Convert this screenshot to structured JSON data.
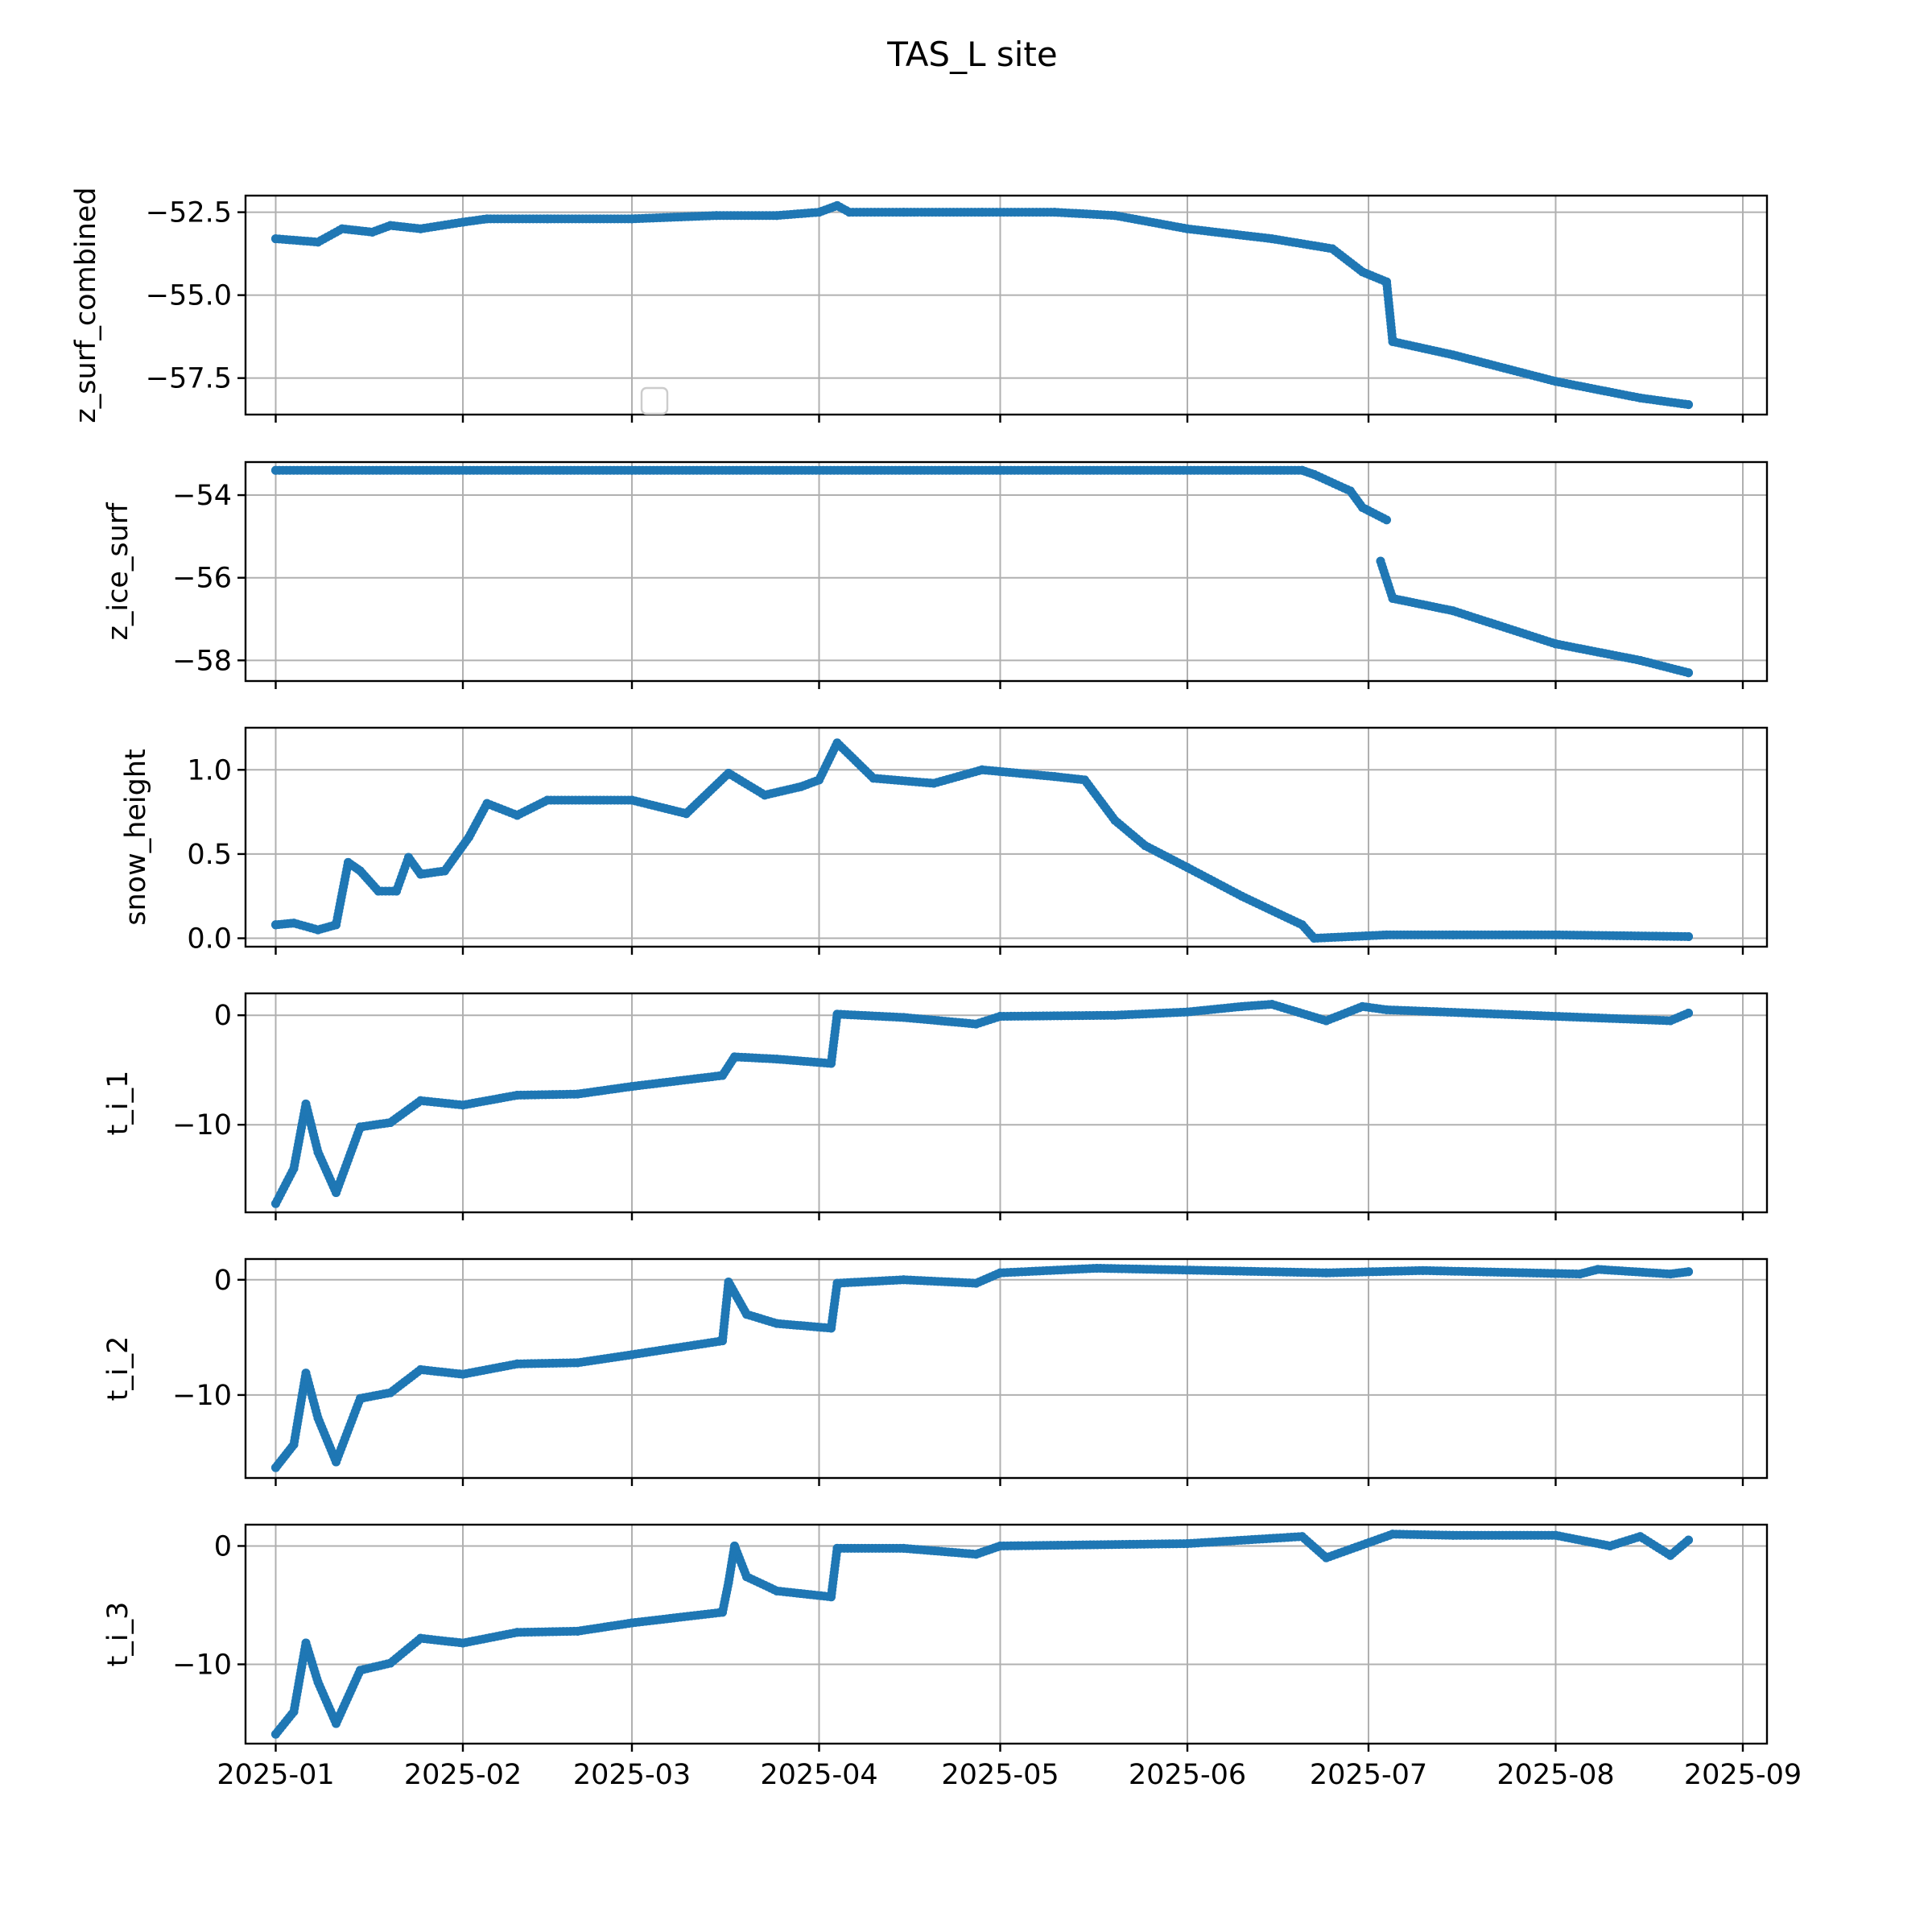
{
  "figure": {
    "title": "TAS_L site"
  },
  "colors": {
    "series": "#1f77b4",
    "grid": "#b0b0b0",
    "frame": "#000000"
  },
  "x_tick_labels": [
    "2025-01",
    "2025-02",
    "2025-03",
    "2025-04",
    "2025-05",
    "2025-06",
    "2025-07",
    "2025-08",
    "2025-09"
  ],
  "chart_data": [
    {
      "type": "scatter",
      "ylabel": "z_surf_combined",
      "ylim": [
        -58.6,
        -52.0
      ],
      "yticks": [
        -52.5,
        -55.0,
        -57.5
      ],
      "ytick_labels": [
        "−52.5",
        "−55.0",
        "−57.5"
      ],
      "xlim": [
        "2024-12-27",
        "2025-09-05"
      ],
      "show_xtick_labels": false,
      "legend": "empty box at lower center",
      "grid": true,
      "x": [
        "2025-01-01",
        "2025-01-08",
        "2025-01-12",
        "2025-01-17",
        "2025-01-20",
        "2025-01-25",
        "2025-02-01",
        "2025-02-05",
        "2025-02-15",
        "2025-03-01",
        "2025-03-15",
        "2025-03-25",
        "2025-04-01",
        "2025-04-04",
        "2025-04-06",
        "2025-04-15",
        "2025-04-28",
        "2025-05-10",
        "2025-05-20",
        "2025-06-01",
        "2025-06-15",
        "2025-06-25",
        "2025-06-30",
        "2025-07-04",
        "2025-07-05",
        "2025-07-15",
        "2025-08-01",
        "2025-08-15",
        "2025-08-23"
      ],
      "y": [
        -53.3,
        -53.4,
        -53.0,
        -53.1,
        -52.9,
        -53.0,
        -52.8,
        -52.7,
        -52.7,
        -52.7,
        -52.6,
        -52.6,
        -52.5,
        -52.3,
        -52.5,
        -52.5,
        -52.5,
        -52.5,
        -52.6,
        -53.0,
        -53.3,
        -53.6,
        -54.3,
        -54.6,
        -56.4,
        -56.8,
        -57.6,
        -58.1,
        -58.3
      ]
    },
    {
      "type": "scatter",
      "ylabel": "z_ice_surf",
      "ylim": [
        -58.5,
        -53.2
      ],
      "yticks": [
        -54,
        -56,
        -58
      ],
      "ytick_labels": [
        "−54",
        "−56",
        "−58"
      ],
      "xlim": [
        "2024-12-27",
        "2025-09-05"
      ],
      "show_xtick_labels": false,
      "grid": true,
      "x": [
        "2025-01-01",
        "2025-03-01",
        "2025-05-01",
        "2025-06-20",
        "2025-06-22",
        "2025-06-28",
        "2025-06-30",
        "2025-07-04",
        "2025-07-03",
        "2025-07-05",
        "2025-07-15",
        "2025-08-01",
        "2025-08-15",
        "2025-08-23"
      ],
      "y": [
        -53.4,
        -53.4,
        -53.4,
        -53.4,
        -53.5,
        -53.9,
        -54.3,
        -54.6,
        -55.6,
        -56.5,
        -56.8,
        -57.6,
        -58.0,
        -58.3
      ]
    },
    {
      "type": "scatter",
      "ylabel": "snow_height",
      "ylim": [
        -0.05,
        1.25
      ],
      "yticks": [
        0.0,
        0.5,
        1.0
      ],
      "ytick_labels": [
        "0.0",
        "0.5",
        "1.0"
      ],
      "xlim": [
        "2024-12-27",
        "2025-09-05"
      ],
      "show_xtick_labels": false,
      "grid": true,
      "x": [
        "2025-01-01",
        "2025-01-04",
        "2025-01-08",
        "2025-01-11",
        "2025-01-13",
        "2025-01-15",
        "2025-01-18",
        "2025-01-21",
        "2025-01-23",
        "2025-01-25",
        "2025-01-29",
        "2025-02-02",
        "2025-02-05",
        "2025-02-10",
        "2025-02-15",
        "2025-03-01",
        "2025-03-10",
        "2025-03-17",
        "2025-03-23",
        "2025-03-29",
        "2025-04-01",
        "2025-04-04",
        "2025-04-10",
        "2025-04-20",
        "2025-04-28",
        "2025-05-10",
        "2025-05-15",
        "2025-05-20",
        "2025-05-25",
        "2025-06-01",
        "2025-06-10",
        "2025-06-20",
        "2025-06-22",
        "2025-07-04",
        "2025-07-15",
        "2025-08-01",
        "2025-08-23"
      ],
      "y": [
        0.08,
        0.09,
        0.05,
        0.08,
        0.45,
        0.4,
        0.28,
        0.28,
        0.48,
        0.38,
        0.4,
        0.6,
        0.8,
        0.73,
        0.82,
        0.82,
        0.74,
        0.98,
        0.85,
        0.9,
        0.94,
        1.16,
        0.95,
        0.92,
        1.0,
        0.96,
        0.94,
        0.7,
        0.55,
        0.42,
        0.25,
        0.08,
        0.0,
        0.02,
        0.02,
        0.02,
        0.01
      ]
    },
    {
      "type": "scatter",
      "ylabel": "t_i_1",
      "ylim": [
        -18.0,
        2.0
      ],
      "yticks": [
        0,
        -10
      ],
      "ytick_labels": [
        "0",
        "−10"
      ],
      "xlim": [
        "2024-12-27",
        "2025-09-05"
      ],
      "show_xtick_labels": false,
      "grid": true,
      "x": [
        "2025-01-01",
        "2025-01-04",
        "2025-01-06",
        "2025-01-08",
        "2025-01-11",
        "2025-01-15",
        "2025-01-20",
        "2025-01-25",
        "2025-02-01",
        "2025-02-10",
        "2025-02-20",
        "2025-03-01",
        "2025-03-16",
        "2025-03-18",
        "2025-03-25",
        "2025-04-03",
        "2025-04-04",
        "2025-04-15",
        "2025-04-27",
        "2025-05-01",
        "2025-05-20",
        "2025-06-01",
        "2025-06-10",
        "2025-06-15",
        "2025-06-24",
        "2025-06-30",
        "2025-07-04",
        "2025-08-20",
        "2025-08-23"
      ],
      "y": [
        -17.2,
        -14.0,
        -8.1,
        -12.5,
        -16.2,
        -10.2,
        -9.8,
        -7.8,
        -8.2,
        -7.3,
        -7.2,
        -6.5,
        -5.5,
        -3.8,
        -4.0,
        -4.4,
        0.1,
        -0.2,
        -0.8,
        -0.1,
        0.0,
        0.3,
        0.8,
        1.0,
        -0.5,
        0.8,
        0.5,
        -0.5,
        0.2
      ]
    },
    {
      "type": "scatter",
      "ylabel": "t_i_2",
      "ylim": [
        -17.2,
        1.8
      ],
      "yticks": [
        0,
        -10
      ],
      "ytick_labels": [
        "0",
        "−10"
      ],
      "xlim": [
        "2024-12-27",
        "2025-09-05"
      ],
      "show_xtick_labels": false,
      "grid": true,
      "x": [
        "2025-01-01",
        "2025-01-04",
        "2025-01-06",
        "2025-01-08",
        "2025-01-11",
        "2025-01-15",
        "2025-01-20",
        "2025-01-25",
        "2025-02-01",
        "2025-02-10",
        "2025-02-20",
        "2025-03-01",
        "2025-03-16",
        "2025-03-17",
        "2025-03-20",
        "2025-03-25",
        "2025-04-03",
        "2025-04-04",
        "2025-04-15",
        "2025-04-27",
        "2025-05-01",
        "2025-05-17",
        "2025-06-24",
        "2025-07-10",
        "2025-08-05",
        "2025-08-08",
        "2025-08-20",
        "2025-08-23"
      ],
      "y": [
        -16.3,
        -14.3,
        -8.1,
        -12.0,
        -15.8,
        -10.3,
        -9.8,
        -7.8,
        -8.2,
        -7.3,
        -7.2,
        -6.5,
        -5.3,
        -0.2,
        -3.0,
        -3.8,
        -4.2,
        -0.3,
        0.0,
        -0.3,
        0.6,
        1.0,
        0.6,
        0.8,
        0.5,
        0.9,
        0.5,
        0.7
      ]
    },
    {
      "type": "scatter",
      "ylabel": "t_i_3",
      "ylim": [
        -16.7,
        1.8
      ],
      "yticks": [
        0,
        -10
      ],
      "ytick_labels": [
        "0",
        "−10"
      ],
      "xlim": [
        "2024-12-27",
        "2025-09-05"
      ],
      "show_xtick_labels": true,
      "grid": true,
      "x": [
        "2025-01-01",
        "2025-01-04",
        "2025-01-06",
        "2025-01-08",
        "2025-01-11",
        "2025-01-15",
        "2025-01-20",
        "2025-01-25",
        "2025-02-01",
        "2025-02-10",
        "2025-02-20",
        "2025-03-01",
        "2025-03-16",
        "2025-03-17",
        "2025-03-18",
        "2025-03-20",
        "2025-03-25",
        "2025-04-03",
        "2025-04-04",
        "2025-04-15",
        "2025-04-27",
        "2025-05-01",
        "2025-06-01",
        "2025-06-20",
        "2025-06-24",
        "2025-07-05",
        "2025-07-15",
        "2025-08-01",
        "2025-08-10",
        "2025-08-15",
        "2025-08-20",
        "2025-08-23"
      ],
      "y": [
        -15.9,
        -14.0,
        -8.2,
        -11.5,
        -15.0,
        -10.5,
        -9.9,
        -7.8,
        -8.2,
        -7.3,
        -7.2,
        -6.5,
        -5.6,
        -3.1,
        0.0,
        -2.6,
        -3.8,
        -4.3,
        -0.2,
        -0.2,
        -0.7,
        0.0,
        0.2,
        0.8,
        -1.0,
        1.0,
        0.9,
        0.9,
        0.0,
        0.8,
        -0.8,
        0.5
      ]
    }
  ]
}
